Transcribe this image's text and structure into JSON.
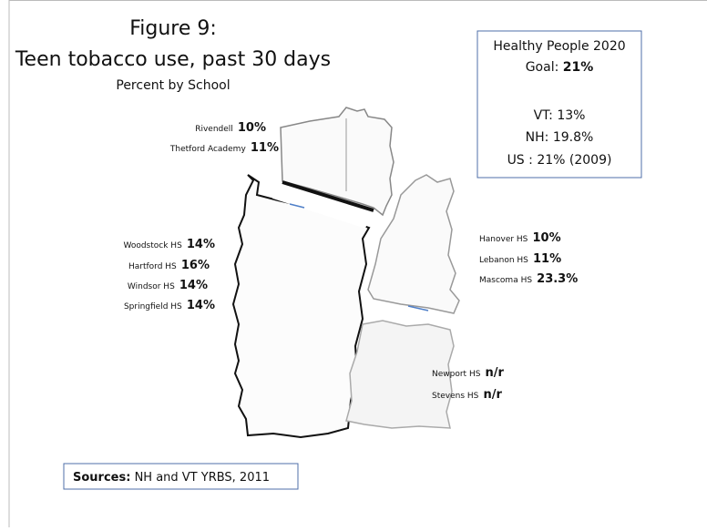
{
  "figure": {
    "number": "Figure 9:",
    "title": "Teen tobacco use, past 30 days",
    "subtitle": "Percent by School"
  },
  "goal_box": {
    "heading": "Healthy People 2020",
    "goal_label": "Goal:",
    "goal_value": "21%",
    "rates": [
      "VT:  13%",
      "NH:  19.8%",
      "US : 21% (2009)"
    ]
  },
  "regions": [
    {
      "schools": [
        {
          "name": "Rivendell",
          "value": "10%"
        },
        {
          "name": "Thetford Academy",
          "value": "11%"
        }
      ]
    },
    {
      "schools": [
        {
          "name": "Woodstock HS",
          "value": "14%"
        },
        {
          "name": "Hartford HS",
          "value": "16%"
        },
        {
          "name": "Windsor HS",
          "value": "14%"
        },
        {
          "name": "Springfield  HS",
          "value": "14%"
        }
      ]
    },
    {
      "schools": [
        {
          "name": "Hanover HS",
          "value": "10%"
        },
        {
          "name": "Lebanon HS",
          "value": "11%"
        },
        {
          "name": "Mascoma HS",
          "value": "23.3%"
        }
      ]
    },
    {
      "schools": [
        {
          "name": "Newport HS",
          "value": "n/r"
        },
        {
          "name": "Stevens HS",
          "value": "n/r"
        }
      ]
    }
  ],
  "sources": {
    "label": "Sources:",
    "text": "NH and VT YRBS, 2011"
  }
}
